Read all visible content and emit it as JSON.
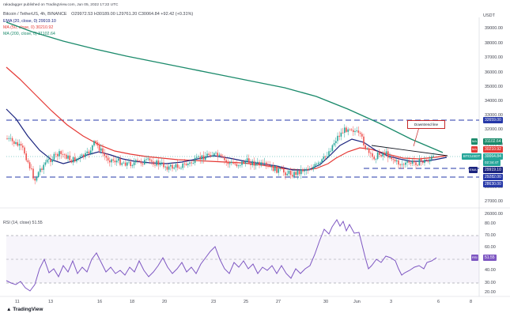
{
  "header": {
    "publisher": "rakadagger published on TradingView.com, Jun 05, 2022 17:22 UTC",
    "symbol": "Bitcoin / TetherUS, 4h, BINANCE",
    "ohlc": "O29972.53 H30189.00 L29761.20 C30064.84 +92.42 (+0.31%)",
    "currency": "USDT"
  },
  "indicators": {
    "ema20": "EMA (20, close, 0)  29919.10",
    "ma50": "MA (50, close, 0)  30210.92",
    "ma200": "MA (200, close, 0)  31102.64"
  },
  "rsi_label": "RSI (14, close)  51.55",
  "price_axis": [
    "39000.00",
    "38000.00",
    "37000.00",
    "36000.00",
    "35000.00",
    "34000.00",
    "33000.00",
    "32000.00",
    "31000.00",
    "30000.00",
    "29000.00",
    "28000.00",
    "27000.00",
    "26000.00"
  ],
  "rsi_axis": [
    "80.00",
    "70.00",
    "60.00",
    "50.00",
    "40.00",
    "30.00",
    "20.00"
  ],
  "time_axis": [
    "11",
    "13",
    "16",
    "18",
    "20",
    "23",
    "25",
    "27",
    "30",
    "Jun",
    "3",
    "6",
    "8"
  ],
  "price_tags": {
    "resistance": "32659.00",
    "ma200": "31102.64",
    "ma50": "30210.92",
    "last": "30064.84",
    "countdown": "02:34:47",
    "ema20": "29919.10",
    "support1": "29282.00",
    "support2": "28630.00",
    "ma_label": "MA",
    "ema_label": "EMA",
    "symbol_tag": "BTCUSDT"
  },
  "rsi_tag": "51.55",
  "annotation": "Downtrend line",
  "logo": "TradingView",
  "colors": {
    "ema": "#1a237e",
    "ma50": "#e53935",
    "ma200": "#1b8a6b",
    "up": "#26a69a",
    "down": "#ef5350",
    "dash": "#2638a8",
    "rsi": "#7e57c2"
  }
}
